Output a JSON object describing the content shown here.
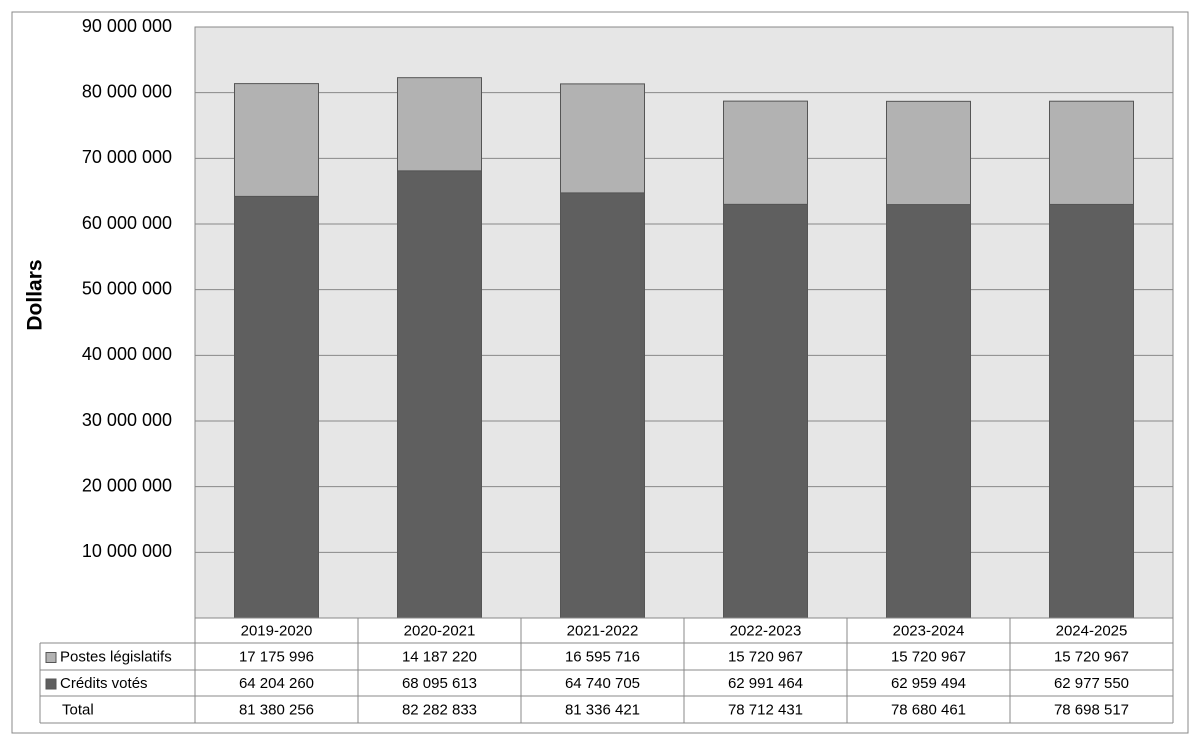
{
  "chart_data": {
    "type": "stacked_bar",
    "y_label": "Dollars",
    "categories": [
      "2019-2020",
      "2020-2021",
      "2021-2022",
      "2022-2023",
      "2023-2024",
      "2024-2025"
    ],
    "series": [
      {
        "name": "Crédits votés",
        "color": "#5f5f5f",
        "values": [
          64204260,
          68095613,
          64740705,
          62991464,
          62959494,
          62977550
        ],
        "value_labels": [
          "64 204 260",
          "68 095 613",
          "64 740 705",
          "62 991 464",
          "62 959 494",
          "62 977 550"
        ]
      },
      {
        "name": "Postes législatifs",
        "color": "#b2b2b2",
        "values": [
          17175996,
          14187220,
          16595716,
          15720967,
          15720967,
          15720967
        ],
        "value_labels": [
          "17 175 996",
          "14 187 220",
          "16 595 716",
          "15 720 967",
          "15 720 967",
          "15 720 967"
        ]
      }
    ],
    "total": {
      "name": "Total",
      "values": [
        81380256,
        82282833,
        81336421,
        78712431,
        78680461,
        78698517
      ],
      "value_labels": [
        "81 380 256",
        "82 282 833",
        "81 336 421",
        "78 712 431",
        "78 680 461",
        "78 698 517"
      ]
    },
    "ylim": [
      0,
      90000000
    ],
    "yticks": [
      {
        "value": 10000000,
        "label": "10 000 000"
      },
      {
        "value": 20000000,
        "label": "20 000 000"
      },
      {
        "value": 30000000,
        "label": "30 000 000"
      },
      {
        "value": 40000000,
        "label": "40 000 000"
      },
      {
        "value": 50000000,
        "label": "50 000 000"
      },
      {
        "value": 60000000,
        "label": "60 000 000"
      },
      {
        "value": 70000000,
        "label": "70 000 000"
      },
      {
        "value": 80000000,
        "label": "80 000 000"
      },
      {
        "value": 90000000,
        "label": "90 000 000"
      }
    ],
    "grid": true,
    "plot_background": "#e6e6e6"
  }
}
